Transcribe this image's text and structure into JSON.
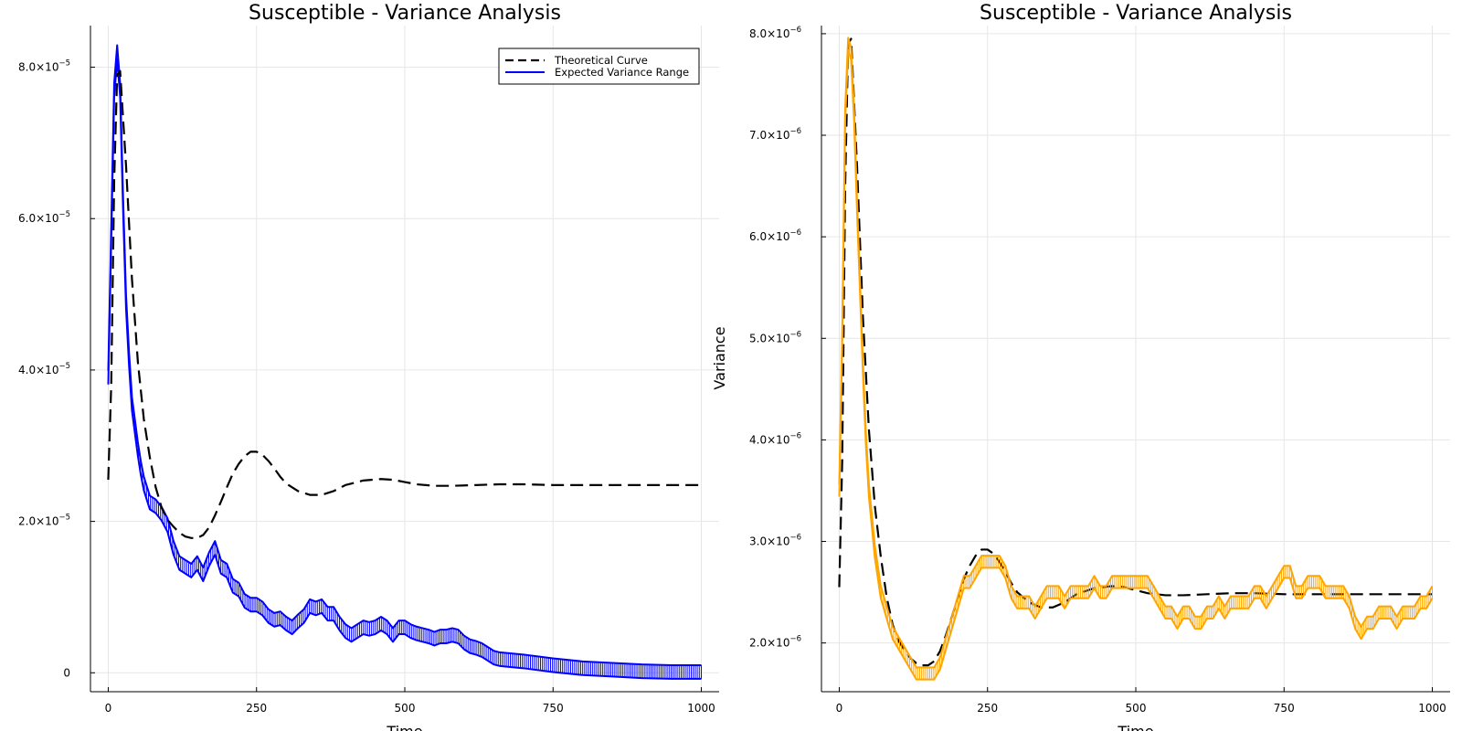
{
  "chart_data": [
    {
      "type": "line",
      "title": "Susceptible - Variance Analysis",
      "xlabel": "Time",
      "ylabel": "",
      "xlim": [
        -30,
        1030
      ],
      "ylim": [
        -2.5e-06,
        8.55e-05
      ],
      "xticks": [
        0,
        250,
        500,
        750,
        1000
      ],
      "xtick_labels": [
        "0",
        "250",
        "500",
        "750",
        "1000"
      ],
      "yticks": [
        0,
        2e-05,
        4e-05,
        6e-05,
        8e-05
      ],
      "ytick_labels": [
        {
          "mant": "0",
          "exp": ""
        },
        {
          "mant": "2.0×10",
          "exp": "−5"
        },
        {
          "mant": "4.0×10",
          "exp": "−5"
        },
        {
          "mant": "6.0×10",
          "exp": "−5"
        },
        {
          "mant": "8.0×10",
          "exp": "−5"
        }
      ],
      "grid": true,
      "legend": "top-right",
      "series": [
        {
          "name": "Theoretical Curve",
          "style": "dashed",
          "color": "#000000",
          "x": [
            0,
            5,
            10,
            15,
            20,
            30,
            40,
            50,
            60,
            70,
            80,
            90,
            100,
            110,
            120,
            130,
            140,
            150,
            160,
            170,
            180,
            190,
            200,
            210,
            220,
            230,
            240,
            250,
            260,
            270,
            280,
            290,
            300,
            320,
            340,
            360,
            380,
            400,
            430,
            460,
            480,
            500,
            520,
            550,
            580,
            620,
            660,
            700,
            750,
            800,
            850,
            900,
            950,
            1000
          ],
          "y": [
            2.55e-05,
            3.8e-05,
            6.5e-05,
            7.9e-05,
            7.95e-05,
            6.7e-05,
            5.2e-05,
            4.1e-05,
            3.35e-05,
            2.85e-05,
            2.45e-05,
            2.18e-05,
            2.02e-05,
            1.93e-05,
            1.85e-05,
            1.8e-05,
            1.78e-05,
            1.78e-05,
            1.82e-05,
            1.92e-05,
            2.08e-05,
            2.26e-05,
            2.45e-05,
            2.63e-05,
            2.76e-05,
            2.86e-05,
            2.92e-05,
            2.92e-05,
            2.88e-05,
            2.8e-05,
            2.7e-05,
            2.59e-05,
            2.5e-05,
            2.4e-05,
            2.35e-05,
            2.35e-05,
            2.4e-05,
            2.48e-05,
            2.54e-05,
            2.56e-05,
            2.55e-05,
            2.52e-05,
            2.49e-05,
            2.47e-05,
            2.47e-05,
            2.48e-05,
            2.49e-05,
            2.49e-05,
            2.48e-05,
            2.48e-05,
            2.48e-05,
            2.48e-05,
            2.48e-05,
            2.48e-05
          ]
        },
        {
          "name": "Expected Variance Range",
          "style": "band",
          "color": "#0000ff",
          "x": [
            0,
            5,
            10,
            15,
            20,
            25,
            30,
            35,
            40,
            45,
            50,
            55,
            60,
            70,
            80,
            90,
            100,
            110,
            120,
            130,
            140,
            150,
            160,
            170,
            180,
            190,
            200,
            210,
            220,
            230,
            240,
            250,
            260,
            270,
            280,
            290,
            300,
            310,
            320,
            330,
            340,
            350,
            360,
            370,
            380,
            390,
            400,
            410,
            420,
            430,
            440,
            450,
            460,
            470,
            480,
            490,
            500,
            510,
            520,
            530,
            540,
            550,
            560,
            570,
            580,
            590,
            600,
            610,
            620,
            630,
            640,
            650,
            660,
            700,
            750,
            800,
            850,
            900,
            950,
            1000
          ],
          "y": [
            3.9e-05,
            5.8e-05,
            7.7e-05,
            8.2e-05,
            7.7e-05,
            6.2e-05,
            4.9e-05,
            4.15e-05,
            3.55e-05,
            3.25e-05,
            2.95e-05,
            2.7e-05,
            2.5e-05,
            2.25e-05,
            2.2e-05,
            2.1e-05,
            1.95e-05,
            1.65e-05,
            1.45e-05,
            1.4e-05,
            1.35e-05,
            1.45e-05,
            1.3e-05,
            1.5e-05,
            1.65e-05,
            1.4e-05,
            1.35e-05,
            1.15e-05,
            1.1e-05,
            9.5e-06,
            9e-06,
            9e-06,
            8.5e-06,
            7.5e-06,
            7e-06,
            7.2e-06,
            6.5e-06,
            6e-06,
            6.8e-06,
            7.5e-06,
            8.8e-06,
            8.5e-06,
            8.8e-06,
            7.8e-06,
            7.8e-06,
            6.5e-06,
            5.5e-06,
            5e-06,
            5.5e-06,
            6e-06,
            5.8e-06,
            6e-06,
            6.5e-06,
            6e-06,
            5e-06,
            6e-06,
            6e-06,
            5.5e-06,
            5.2e-06,
            5e-06,
            4.8e-06,
            4.5e-06,
            4.8e-06,
            4.8e-06,
            5e-06,
            4.8e-06,
            4e-06,
            3.5e-06,
            3.3e-06,
            3e-06,
            2.5e-06,
            2e-06,
            1.8e-06,
            1.5e-06,
            1e-06,
            6e-07,
            4e-07,
            2e-07,
            1e-07,
            1e-07
          ],
          "spread": 9e-07
        }
      ]
    },
    {
      "type": "line",
      "title": "Susceptible - Variance Analysis",
      "xlabel": "Time",
      "ylabel": "Variance",
      "xlim": [
        -30,
        1030
      ],
      "ylim": [
        1.52e-06,
        8.08e-06
      ],
      "xticks": [
        0,
        250,
        500,
        750,
        1000
      ],
      "xtick_labels": [
        "0",
        "250",
        "500",
        "750",
        "1000"
      ],
      "yticks": [
        2e-06,
        3e-06,
        4e-06,
        5e-06,
        6e-06,
        7e-06,
        8e-06
      ],
      "ytick_labels": [
        {
          "mant": "2.0×10",
          "exp": "−6"
        },
        {
          "mant": "3.0×10",
          "exp": "−6"
        },
        {
          "mant": "4.0×10",
          "exp": "−6"
        },
        {
          "mant": "5.0×10",
          "exp": "−6"
        },
        {
          "mant": "6.0×10",
          "exp": "−6"
        },
        {
          "mant": "7.0×10",
          "exp": "−6"
        },
        {
          "mant": "8.0×10",
          "exp": "−6"
        }
      ],
      "grid": true,
      "series": [
        {
          "style": "dashed",
          "color": "#000000",
          "x": [
            0,
            5,
            10,
            15,
            20,
            30,
            40,
            50,
            60,
            70,
            80,
            90,
            100,
            110,
            120,
            130,
            140,
            150,
            160,
            170,
            180,
            190,
            200,
            210,
            220,
            230,
            240,
            250,
            260,
            270,
            280,
            290,
            300,
            320,
            340,
            360,
            380,
            400,
            430,
            460,
            480,
            500,
            520,
            550,
            580,
            620,
            660,
            700,
            750,
            800,
            850,
            900,
            950,
            1000
          ],
          "y": [
            2.55e-06,
            3.8e-06,
            6.5e-06,
            7.9e-06,
            7.95e-06,
            6.7e-06,
            5.2e-06,
            4.1e-06,
            3.35e-06,
            2.85e-06,
            2.45e-06,
            2.18e-06,
            2.02e-06,
            1.93e-06,
            1.85e-06,
            1.8e-06,
            1.78e-06,
            1.78e-06,
            1.82e-06,
            1.92e-06,
            2.08e-06,
            2.26e-06,
            2.45e-06,
            2.63e-06,
            2.76e-06,
            2.86e-06,
            2.92e-06,
            2.92e-06,
            2.88e-06,
            2.8e-06,
            2.7e-06,
            2.59e-06,
            2.5e-06,
            2.4e-06,
            2.35e-06,
            2.35e-06,
            2.4e-06,
            2.48e-06,
            2.54e-06,
            2.56e-06,
            2.55e-06,
            2.52e-06,
            2.49e-06,
            2.47e-06,
            2.47e-06,
            2.48e-06,
            2.49e-06,
            2.49e-06,
            2.48e-06,
            2.48e-06,
            2.48e-06,
            2.48e-06,
            2.48e-06,
            2.48e-06
          ]
        },
        {
          "style": "band",
          "color": "#ffa500",
          "x": [
            0,
            5,
            10,
            15,
            20,
            25,
            30,
            35,
            40,
            45,
            50,
            60,
            70,
            80,
            90,
            100,
            110,
            120,
            130,
            140,
            150,
            160,
            170,
            180,
            190,
            200,
            210,
            220,
            230,
            240,
            250,
            260,
            270,
            280,
            290,
            300,
            310,
            320,
            330,
            340,
            350,
            360,
            370,
            380,
            390,
            400,
            410,
            420,
            430,
            440,
            450,
            460,
            470,
            480,
            490,
            500,
            510,
            520,
            530,
            540,
            550,
            560,
            570,
            580,
            590,
            600,
            610,
            620,
            630,
            640,
            650,
            660,
            670,
            680,
            690,
            700,
            710,
            720,
            730,
            740,
            750,
            760,
            770,
            780,
            790,
            800,
            810,
            820,
            830,
            840,
            850,
            860,
            870,
            880,
            890,
            900,
            910,
            920,
            930,
            940,
            950,
            960,
            970,
            980,
            990,
            1000
          ],
          "y": [
            3.5e-06,
            5e-06,
            7.2e-06,
            7.9e-06,
            7.8e-06,
            7.2e-06,
            6.3e-06,
            5.5e-06,
            4.7e-06,
            4e-06,
            3.5e-06,
            2.9e-06,
            2.5e-06,
            2.3e-06,
            2.1e-06,
            2e-06,
            1.9e-06,
            1.8e-06,
            1.7e-06,
            1.7e-06,
            1.7e-06,
            1.7e-06,
            1.8e-06,
            2e-06,
            2.2e-06,
            2.4e-06,
            2.6e-06,
            2.6e-06,
            2.7e-06,
            2.8e-06,
            2.8e-06,
            2.8e-06,
            2.8e-06,
            2.7e-06,
            2.5e-06,
            2.4e-06,
            2.4e-06,
            2.4e-06,
            2.3e-06,
            2.4e-06,
            2.5e-06,
            2.5e-06,
            2.5e-06,
            2.4e-06,
            2.5e-06,
            2.5e-06,
            2.5e-06,
            2.5e-06,
            2.6e-06,
            2.5e-06,
            2.5e-06,
            2.6e-06,
            2.6e-06,
            2.6e-06,
            2.6e-06,
            2.6e-06,
            2.6e-06,
            2.6e-06,
            2.5e-06,
            2.4e-06,
            2.3e-06,
            2.3e-06,
            2.2e-06,
            2.3e-06,
            2.3e-06,
            2.2e-06,
            2.2e-06,
            2.3e-06,
            2.3e-06,
            2.4e-06,
            2.3e-06,
            2.4e-06,
            2.4e-06,
            2.4e-06,
            2.4e-06,
            2.5e-06,
            2.5e-06,
            2.4e-06,
            2.5e-06,
            2.6e-06,
            2.7e-06,
            2.7e-06,
            2.5e-06,
            2.5e-06,
            2.6e-06,
            2.6e-06,
            2.6e-06,
            2.5e-06,
            2.5e-06,
            2.5e-06,
            2.5e-06,
            2.4e-06,
            2.2e-06,
            2.1e-06,
            2.2e-06,
            2.2e-06,
            2.3e-06,
            2.3e-06,
            2.3e-06,
            2.2e-06,
            2.3e-06,
            2.3e-06,
            2.3e-06,
            2.4e-06,
            2.4e-06,
            2.5e-06
          ],
          "spread": 6e-08
        }
      ]
    }
  ]
}
